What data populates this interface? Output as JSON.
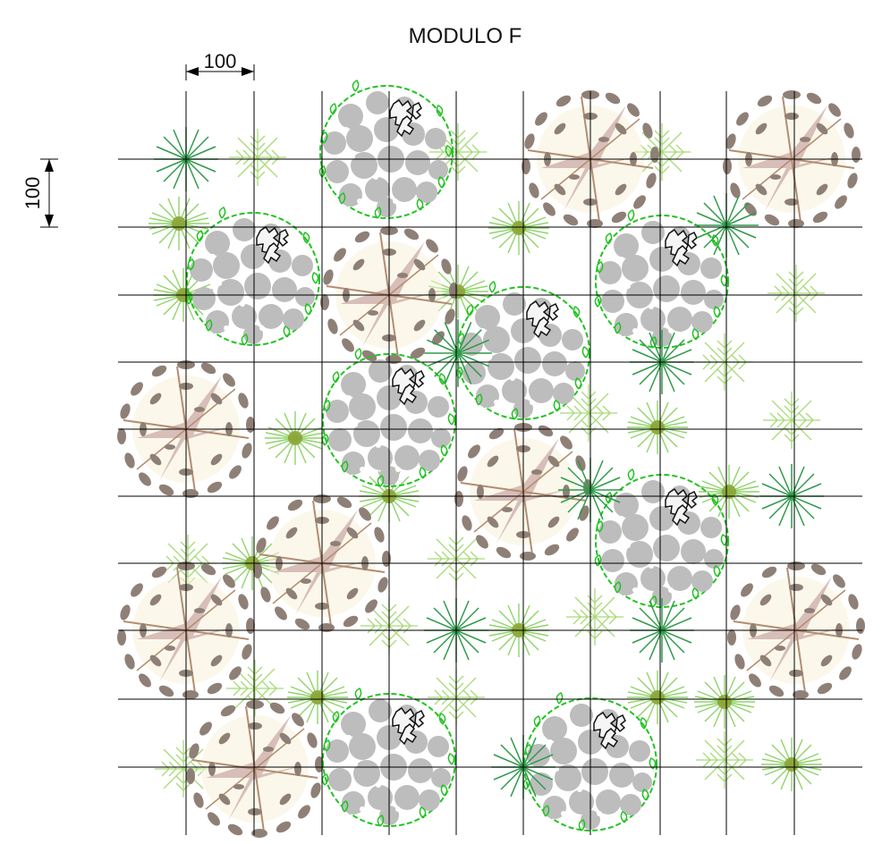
{
  "title": "MODULO F",
  "dimensions": {
    "horizontal": "100",
    "vertical": "100"
  },
  "colors": {
    "grid": "#000000",
    "brown_tree": "#8a7a70",
    "brown_trunk": "#b08a86",
    "gray_canopy": "#b9b9b9",
    "green_outline": "#22c322",
    "dark_leaves": "#1a1a1a",
    "green_star": "#2f9a4a",
    "light_green": "#9bd36b",
    "palm_center": "#8aa030"
  },
  "legend_icons": [
    "brown-leaf-tree-icon",
    "gray-round-tree-icon",
    "green-star-shrub-icon",
    "fern-icon",
    "palm-icon"
  ]
}
